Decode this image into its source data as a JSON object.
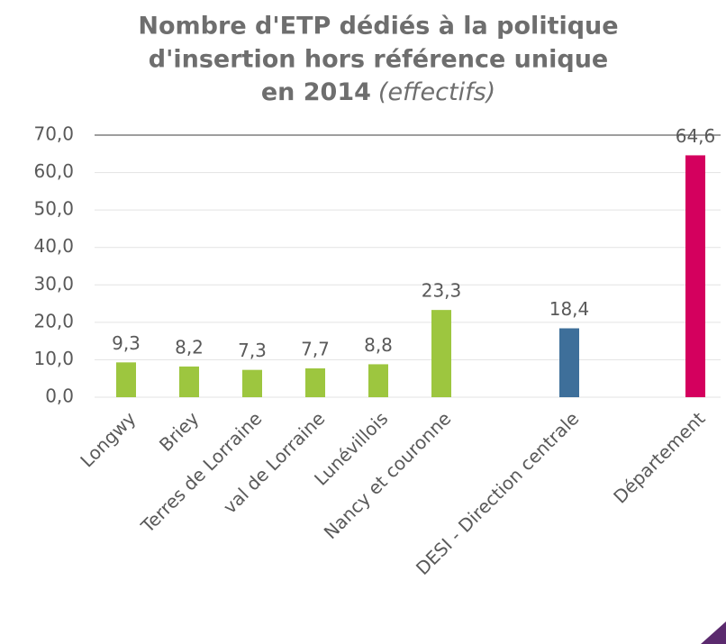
{
  "chart_data": {
    "type": "bar",
    "title": [
      "Nombre d'ETP dédiés à la politique",
      "d'insertion hors référence unique",
      "en 2014"
    ],
    "subtitle": "(effectifs)",
    "categories": [
      "Longwy",
      "Briey",
      "Terres de Lorraine",
      "val de Lorraine",
      "Lunévillois",
      "Nancy et couronne",
      "DESI - Direction centrale",
      "Département"
    ],
    "values": [
      9.3,
      8.2,
      7.3,
      7.7,
      8.8,
      23.3,
      18.4,
      64.6
    ],
    "value_labels": [
      "9,3",
      "8,2",
      "7,3",
      "7,7",
      "8,8",
      "23,3",
      "18,4",
      "64,6"
    ],
    "colors": [
      "#9dc63f",
      "#9dc63f",
      "#9dc63f",
      "#9dc63f",
      "#9dc63f",
      "#9dc63f",
      "#3e6f9a",
      "#d4005e"
    ],
    "ylim": [
      0,
      70
    ],
    "yticks": [
      {
        "value": 0,
        "label": "0,0"
      },
      {
        "value": 10,
        "label": "10,0"
      },
      {
        "value": 20,
        "label": "20,0"
      },
      {
        "value": 30,
        "label": "30,0"
      },
      {
        "value": 40,
        "label": "40,0"
      },
      {
        "value": 50,
        "label": "50,0"
      },
      {
        "value": 60,
        "label": "60,0"
      },
      {
        "value": 70,
        "label": "70,0"
      }
    ],
    "grid": true
  }
}
